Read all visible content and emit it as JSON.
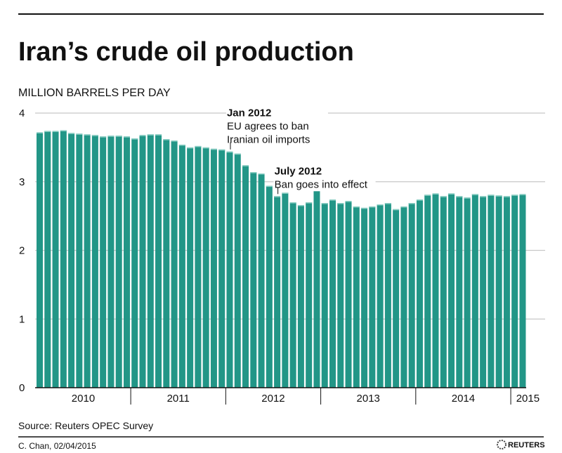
{
  "chart_data": {
    "type": "bar",
    "title": "Iran’s crude oil production",
    "ylabel": "MILLION BARRELS PER DAY",
    "xlabel": "",
    "ylim": [
      0,
      4
    ],
    "yticks": [
      "0",
      "1",
      "2",
      "3",
      "4"
    ],
    "grid": true,
    "x_start": "Jan 2010",
    "x_end": "Feb 2015",
    "frequency": "monthly",
    "year_labels": [
      "2010",
      "2011",
      "2012",
      "2013",
      "2014",
      "2015"
    ],
    "values": [
      3.72,
      3.74,
      3.74,
      3.75,
      3.71,
      3.7,
      3.69,
      3.68,
      3.66,
      3.67,
      3.67,
      3.66,
      3.63,
      3.68,
      3.69,
      3.69,
      3.62,
      3.6,
      3.54,
      3.5,
      3.52,
      3.5,
      3.48,
      3.47,
      3.44,
      3.41,
      3.24,
      3.14,
      3.12,
      2.94,
      2.79,
      2.84,
      2.7,
      2.66,
      2.7,
      2.94,
      2.69,
      2.74,
      2.69,
      2.72,
      2.64,
      2.62,
      2.64,
      2.67,
      2.69,
      2.6,
      2.64,
      2.69,
      2.74,
      2.81,
      2.83,
      2.79,
      2.83,
      2.79,
      2.77,
      2.82,
      2.79,
      2.81,
      2.8,
      2.79,
      2.81,
      2.82
    ],
    "annotations": [
      {
        "index": 24,
        "title": "Jan 2012",
        "lines": [
          "EU agrees to ban",
          "Iranian oil imports"
        ]
      },
      {
        "index": 30,
        "title": "July 2012",
        "lines": [
          "Ban goes into effect"
        ]
      }
    ],
    "bar_color": "#229687"
  },
  "footer": {
    "source": "Source: Reuters OPEC Survey",
    "credit": "C. Chan, 02/04/2015",
    "logo": "REUTERS"
  }
}
